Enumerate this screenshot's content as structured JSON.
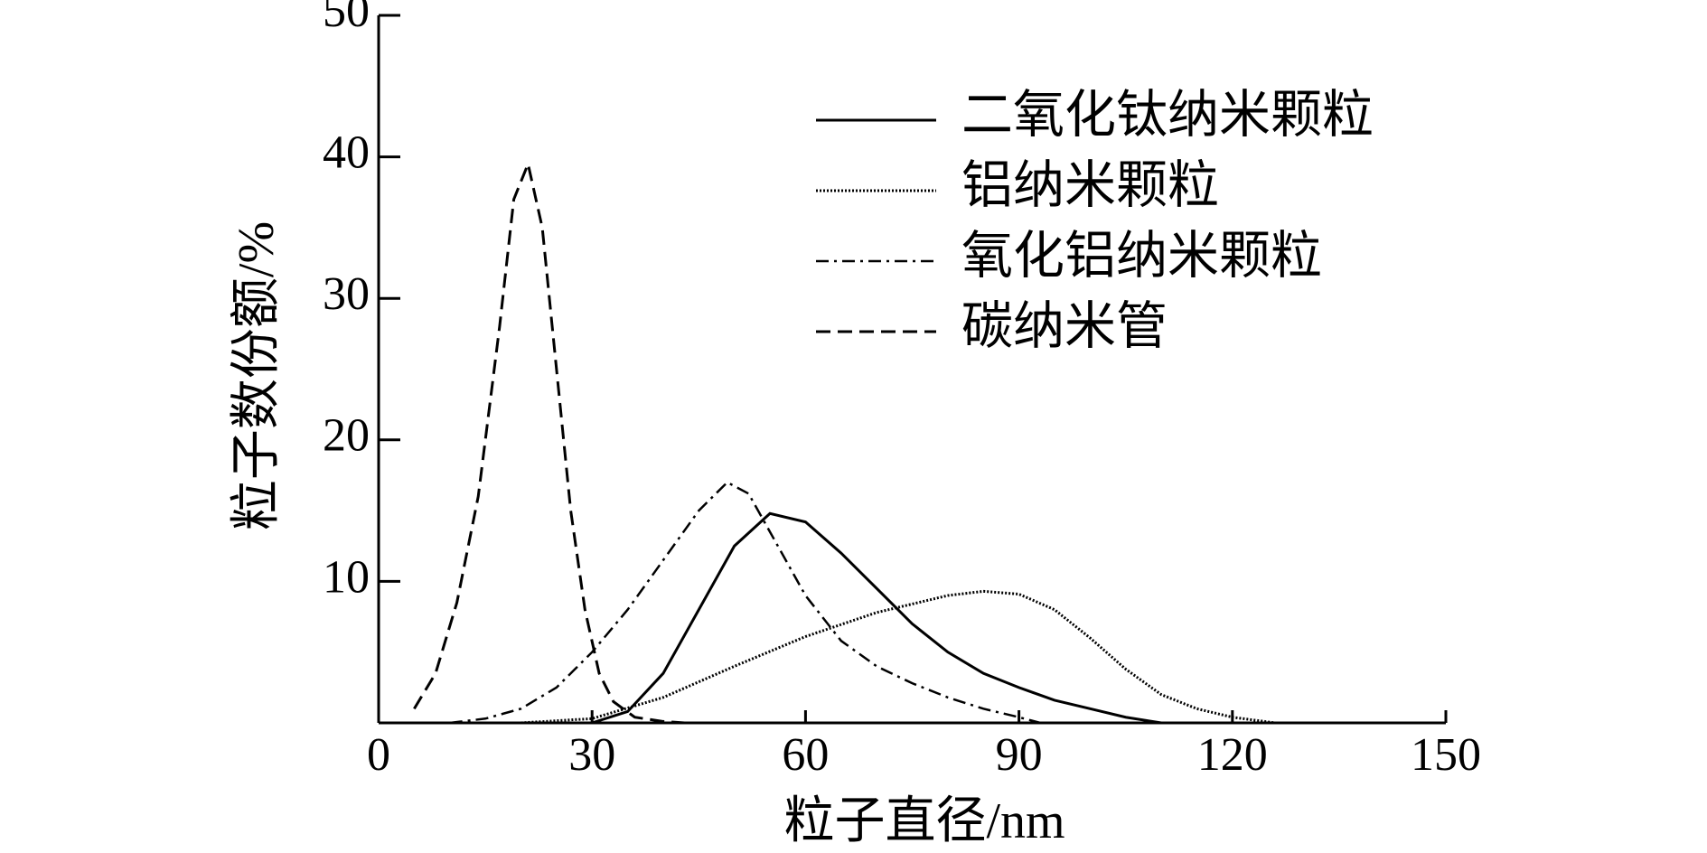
{
  "chart_data": {
    "type": "line",
    "x_label": "粒子直径/nm",
    "y_label": "粒子数份额/%",
    "xlim": [
      0,
      150
    ],
    "xticks": [
      0,
      30,
      60,
      90,
      120,
      150
    ],
    "ylim": [
      0,
      50
    ],
    "yticks": [
      10,
      20,
      30,
      40,
      50
    ],
    "legend": "upper right",
    "series": [
      {
        "name": "二氧化钛纳米颗粒",
        "color": "#000000",
        "line_style": "solid",
        "x": [
          30,
          35,
          40,
          45,
          50,
          55,
          60,
          65,
          70,
          75,
          80,
          85,
          90,
          95,
          100,
          105,
          110
        ],
        "values": [
          0,
          0.8,
          3.5,
          8,
          12.5,
          14.8,
          14.2,
          12,
          9.5,
          7,
          5,
          3.5,
          2.5,
          1.6,
          1,
          0.4,
          0
        ]
      },
      {
        "name": "铝纳米颗粒",
        "color": "#000000",
        "line_style": "dotted",
        "x": [
          20,
          30,
          40,
          50,
          60,
          70,
          80,
          85,
          90,
          95,
          100,
          105,
          110,
          115,
          120,
          126
        ],
        "values": [
          0,
          0.3,
          1.8,
          4,
          6.1,
          7.8,
          9,
          9.3,
          9.1,
          8,
          6,
          3.8,
          2,
          1,
          0.4,
          0
        ]
      },
      {
        "name": "氧化铝纳米颗粒",
        "color": "#000000",
        "line_style": "dashdot",
        "x": [
          10,
          15,
          20,
          25,
          30,
          35,
          40,
          45,
          49,
          52,
          55,
          60,
          65,
          70,
          75,
          80,
          85,
          90,
          93
        ],
        "values": [
          0,
          0.3,
          1,
          2.5,
          5,
          8,
          11.5,
          15,
          17,
          16.2,
          13.5,
          9,
          5.8,
          4,
          2.8,
          1.8,
          1,
          0.4,
          0
        ]
      },
      {
        "name": "碳纳米管",
        "color": "#000000",
        "line_style": "dashed",
        "x": [
          5,
          8,
          11,
          14,
          17,
          19,
          21,
          23,
          25,
          27,
          29,
          31,
          33,
          36,
          40,
          43
        ],
        "values": [
          1,
          3.5,
          8.5,
          16,
          28,
          37,
          39.5,
          35,
          25,
          15,
          8,
          3.5,
          1.5,
          0.4,
          0.1,
          0
        ]
      }
    ]
  }
}
